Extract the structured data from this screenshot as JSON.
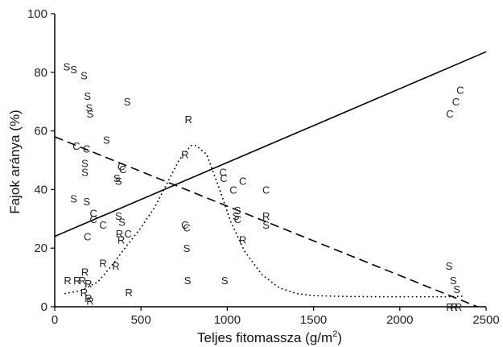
{
  "chart_data": {
    "type": "scatter",
    "xlabel": "Teljes fitomassza (g/m",
    "xlabel_sup": "2",
    "xlabel_end": ")",
    "ylabel": "Fajok aránya (%)",
    "xlim": [
      0,
      2500
    ],
    "ylim": [
      0,
      100
    ],
    "xticks": [
      0,
      500,
      1000,
      1500,
      2000,
      2500
    ],
    "yticks": [
      0,
      20,
      40,
      60,
      80,
      100
    ],
    "grid": false,
    "points": [
      {
        "x": 70,
        "y": 82,
        "label": "S"
      },
      {
        "x": 110,
        "y": 81,
        "label": "S"
      },
      {
        "x": 170,
        "y": 79,
        "label": "S"
      },
      {
        "x": 190,
        "y": 72,
        "label": "S"
      },
      {
        "x": 200,
        "y": 68,
        "label": "S"
      },
      {
        "x": 205,
        "y": 66,
        "label": "S"
      },
      {
        "x": 300,
        "y": 57,
        "label": "S"
      },
      {
        "x": 420,
        "y": 70,
        "label": "S"
      },
      {
        "x": 175,
        "y": 49,
        "label": "S"
      },
      {
        "x": 175,
        "y": 46,
        "label": "S"
      },
      {
        "x": 360,
        "y": 44,
        "label": "S"
      },
      {
        "x": 370,
        "y": 43,
        "label": "S"
      },
      {
        "x": 110,
        "y": 37,
        "label": "S"
      },
      {
        "x": 185,
        "y": 36,
        "label": "S"
      },
      {
        "x": 370,
        "y": 31,
        "label": "S"
      },
      {
        "x": 390,
        "y": 29,
        "label": "S"
      },
      {
        "x": 765,
        "y": 20,
        "label": "S"
      },
      {
        "x": 770,
        "y": 9,
        "label": "S"
      },
      {
        "x": 985,
        "y": 9,
        "label": "S"
      },
      {
        "x": 1060,
        "y": 33,
        "label": "S"
      },
      {
        "x": 1050,
        "y": 31,
        "label": "S"
      },
      {
        "x": 1225,
        "y": 28,
        "label": "S"
      },
      {
        "x": 2285,
        "y": 14,
        "label": "S"
      },
      {
        "x": 2310,
        "y": 9,
        "label": "S"
      },
      {
        "x": 2330,
        "y": 6,
        "label": "S"
      },
      {
        "x": 125,
        "y": 55,
        "label": "C"
      },
      {
        "x": 185,
        "y": 54,
        "label": "C"
      },
      {
        "x": 385,
        "y": 48,
        "label": "C"
      },
      {
        "x": 395,
        "y": 47,
        "label": "C"
      },
      {
        "x": 225,
        "y": 32,
        "label": "C"
      },
      {
        "x": 225,
        "y": 30,
        "label": "C"
      },
      {
        "x": 280,
        "y": 28,
        "label": "C"
      },
      {
        "x": 190,
        "y": 24,
        "label": "C"
      },
      {
        "x": 425,
        "y": 25,
        "label": "C"
      },
      {
        "x": 755,
        "y": 28,
        "label": "C"
      },
      {
        "x": 765,
        "y": 27,
        "label": "C"
      },
      {
        "x": 975,
        "y": 46,
        "label": "C"
      },
      {
        "x": 980,
        "y": 44,
        "label": "C"
      },
      {
        "x": 1090,
        "y": 43,
        "label": "C"
      },
      {
        "x": 1035,
        "y": 40,
        "label": "C"
      },
      {
        "x": 1225,
        "y": 40,
        "label": "C"
      },
      {
        "x": 1060,
        "y": 30,
        "label": "C"
      },
      {
        "x": 2290,
        "y": 66,
        "label": "C"
      },
      {
        "x": 2325,
        "y": 70,
        "label": "C"
      },
      {
        "x": 2350,
        "y": 74,
        "label": "C"
      },
      {
        "x": 775,
        "y": 64,
        "label": "R"
      },
      {
        "x": 755,
        "y": 52,
        "label": "R"
      },
      {
        "x": 1225,
        "y": 31,
        "label": "R"
      },
      {
        "x": 1090,
        "y": 23,
        "label": "R"
      },
      {
        "x": 375,
        "y": 25,
        "label": "R"
      },
      {
        "x": 385,
        "y": 23,
        "label": "R"
      },
      {
        "x": 280,
        "y": 15,
        "label": "R"
      },
      {
        "x": 355,
        "y": 14,
        "label": "R"
      },
      {
        "x": 75,
        "y": 9,
        "label": "R"
      },
      {
        "x": 175,
        "y": 12,
        "label": "R"
      },
      {
        "x": 130,
        "y": 9,
        "label": "R"
      },
      {
        "x": 160,
        "y": 9,
        "label": "R"
      },
      {
        "x": 195,
        "y": 8,
        "label": "R"
      },
      {
        "x": 170,
        "y": 5,
        "label": "R"
      },
      {
        "x": 195,
        "y": 3,
        "label": "R"
      },
      {
        "x": 205,
        "y": 2,
        "label": "R"
      },
      {
        "x": 430,
        "y": 5,
        "label": "R"
      },
      {
        "x": 2290,
        "y": 0,
        "label": "R"
      },
      {
        "x": 2315,
        "y": 0,
        "label": "R"
      },
      {
        "x": 2340,
        "y": 0,
        "label": "R"
      }
    ],
    "lines": [
      {
        "style": "solid",
        "x": [
          0,
          2500
        ],
        "y": [
          24,
          87
        ]
      },
      {
        "style": "dashed",
        "x": [
          0,
          2450
        ],
        "y": [
          58,
          0
        ]
      },
      {
        "style": "dotted",
        "x": [
          60,
          150,
          250,
          330,
          420,
          500,
          580,
          650,
          720,
          790,
          820,
          880,
          950,
          1020,
          1100,
          1200,
          1300,
          1400,
          1500,
          1700,
          1900,
          2100,
          2300,
          2360
        ],
        "y": [
          4.5,
          5.5,
          8.5,
          14,
          21,
          27,
          34,
          42,
          50,
          55,
          55,
          52,
          41,
          29,
          19,
          11,
          6.5,
          4.5,
          3.8,
          3.5,
          3.4,
          3.4,
          3.4,
          3.6
        ]
      }
    ]
  }
}
